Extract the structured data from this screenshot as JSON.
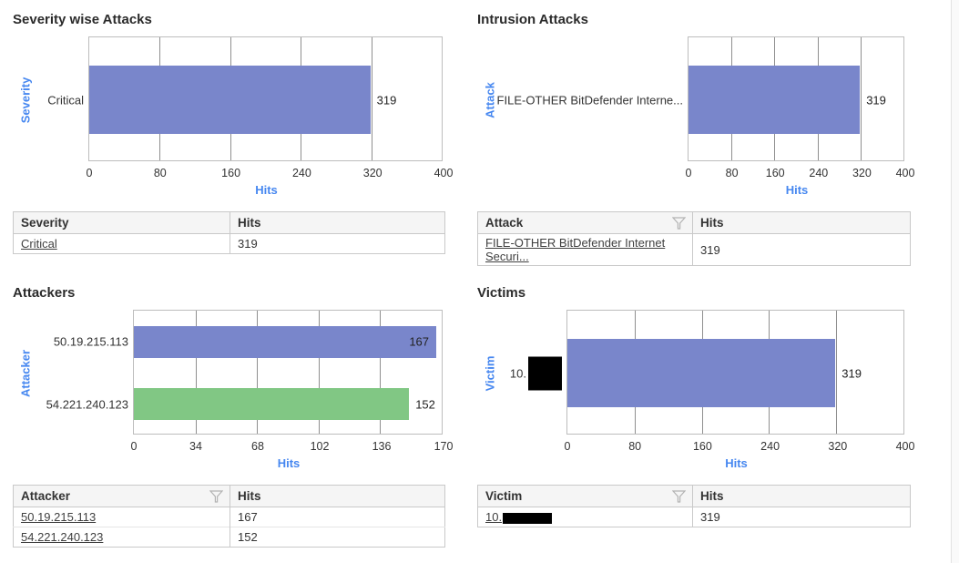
{
  "colors": {
    "bar_indigo": "#7986cb",
    "bar_green": "#81c784",
    "axis_blue": "#4687f0",
    "redaction_black": "#000000"
  },
  "chart_data": [
    {
      "type": "bar",
      "orientation": "horizontal",
      "title": "Severity wise Attacks",
      "ylabel": "Severity",
      "xlabel": "Hits",
      "xlim": [
        0,
        400
      ],
      "xticks": [
        0,
        80,
        160,
        240,
        320,
        400
      ],
      "grid": true,
      "categories": [
        "Critical"
      ],
      "values": [
        319
      ],
      "bar_colors": [
        "#7986cb"
      ],
      "value_labels": [
        "319"
      ],
      "value_label_inside": [
        false
      ],
      "category_redacted": [
        false
      ]
    },
    {
      "type": "bar",
      "orientation": "horizontal",
      "title": "Intrusion Attacks",
      "ylabel": "Attack",
      "xlabel": "Hits",
      "xlim": [
        0,
        400
      ],
      "xticks": [
        0,
        80,
        160,
        240,
        320,
        400
      ],
      "grid": true,
      "categories": [
        "FILE-OTHER BitDefender Interne..."
      ],
      "values": [
        319
      ],
      "bar_colors": [
        "#7986cb"
      ],
      "value_labels": [
        "319"
      ],
      "value_label_inside": [
        false
      ],
      "category_redacted": [
        false
      ]
    },
    {
      "type": "bar",
      "orientation": "horizontal",
      "title": "Attackers",
      "ylabel": "Attacker",
      "xlabel": "Hits",
      "xlim": [
        0,
        170
      ],
      "xticks": [
        0,
        34,
        68,
        102,
        136,
        170
      ],
      "grid": true,
      "categories": [
        "50.19.215.113",
        "54.221.240.123"
      ],
      "values": [
        167,
        152
      ],
      "bar_colors": [
        "#7986cb",
        "#81c784"
      ],
      "value_labels": [
        "167",
        "152"
      ],
      "value_label_inside": [
        true,
        false
      ],
      "category_redacted": [
        false,
        false
      ]
    },
    {
      "type": "bar",
      "orientation": "horizontal",
      "title": "Victims",
      "ylabel": "Victim",
      "xlabel": "Hits",
      "xlim": [
        0,
        400
      ],
      "xticks": [
        0,
        80,
        160,
        240,
        320,
        400
      ],
      "grid": true,
      "categories": [
        "10."
      ],
      "values": [
        319
      ],
      "bar_colors": [
        "#7986cb"
      ],
      "value_labels": [
        "319"
      ],
      "value_label_inside": [
        false
      ],
      "category_redacted": [
        true
      ]
    }
  ],
  "tables": [
    {
      "columns": [
        {
          "label": "Severity",
          "filter": false
        },
        {
          "label": "Hits",
          "filter": false
        }
      ],
      "rows": [
        {
          "name": "10.",
          "hits": ""
        }
      ]
    }
  ],
  "tables_fix_note": "see tables_data",
  "tables_data": [
    {
      "id": "severity",
      "columns": [
        {
          "label": "Severity",
          "filter": false
        },
        {
          "label": "Hits",
          "filter": false
        }
      ],
      "rows": [
        {
          "name": "Critical",
          "name_is_link": true,
          "name_redacted": false,
          "hits": "319"
        }
      ]
    },
    {
      "id": "attack",
      "columns": [
        {
          "label": "Attack",
          "filter": true
        },
        {
          "label": "Hits",
          "filter": false
        }
      ],
      "rows": [
        {
          "name": "FILE-OTHER BitDefender Internet Securi...",
          "name_is_link": true,
          "name_redacted": false,
          "hits": "319"
        }
      ]
    },
    {
      "id": "attacker",
      "columns": [
        {
          "label": "Attacker",
          "filter": true
        },
        {
          "label": "Hits",
          "filter": false
        }
      ],
      "rows": [
        {
          "name": "50.19.215.113",
          "name_is_link": true,
          "name_redacted": false,
          "hits": "167"
        },
        {
          "name": "54.221.240.123",
          "name_is_link": true,
          "name_redacted": false,
          "hits": "152"
        }
      ]
    },
    {
      "id": "victim",
      "columns": [
        {
          "label": "Victim",
          "filter": true
        },
        {
          "label": "Hits",
          "filter": false
        }
      ],
      "rows": [
        {
          "name": "10.",
          "name_is_link": true,
          "name_redacted": true,
          "hits": "319"
        }
      ]
    }
  ]
}
